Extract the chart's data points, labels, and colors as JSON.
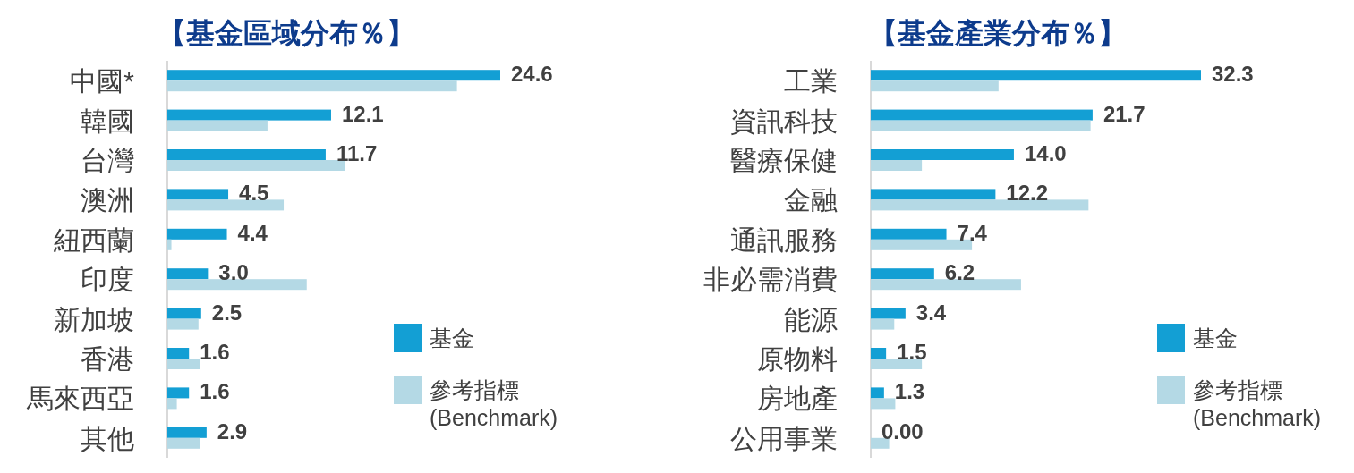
{
  "chart_data": [
    {
      "type": "bar",
      "orientation": "horizontal",
      "title": "【基金區域分布％】",
      "categories": [
        "中國*",
        "韓國",
        "台灣",
        "澳洲",
        "紐西蘭",
        "印度",
        "新加坡",
        "香港",
        "馬來西亞",
        "其他"
      ],
      "series": [
        {
          "name": "基金",
          "color": "#139fd4",
          "values": [
            24.6,
            12.1,
            11.7,
            4.5,
            4.4,
            3.0,
            2.5,
            1.6,
            1.6,
            2.9
          ],
          "value_labels": [
            "24.6",
            "12.1",
            "11.7",
            "4.5",
            "4.4",
            "3.0",
            "2.5",
            "1.6",
            "1.6",
            "2.9"
          ]
        },
        {
          "name": "參考指標 (Benchmark)",
          "color": "#b4d9e5",
          "values": [
            21.4,
            7.4,
            13.1,
            8.6,
            0.3,
            10.3,
            2.3,
            2.4,
            0.7,
            2.4
          ]
        }
      ],
      "legend": "bottom right"
    },
    {
      "type": "bar",
      "orientation": "horizontal",
      "title": "【基金產業分布％】",
      "categories": [
        "工業",
        "資訊科技",
        "醫療保健",
        "金融",
        "通訊服務",
        "非必需消費",
        "能源",
        "原物料",
        "房地產",
        "公用事業"
      ],
      "series": [
        {
          "name": "基金",
          "color": "#139fd4",
          "values": [
            32.3,
            21.7,
            14.0,
            12.2,
            7.4,
            6.2,
            3.4,
            1.5,
            1.3,
            0
          ],
          "value_labels": [
            "32.3",
            "21.7",
            "14.0",
            "12.2",
            "7.4",
            "6.2",
            "3.4",
            "1.5",
            "1.3",
            "0.00"
          ]
        },
        {
          "name": "參考指標 (Benchmark)",
          "color": "#b4d9e5",
          "values": [
            12.5,
            21.5,
            5.0,
            21.3,
            9.9,
            14.7,
            2.3,
            5.0,
            2.4,
            1.8
          ]
        }
      ],
      "legend": "bottom right"
    }
  ]
}
